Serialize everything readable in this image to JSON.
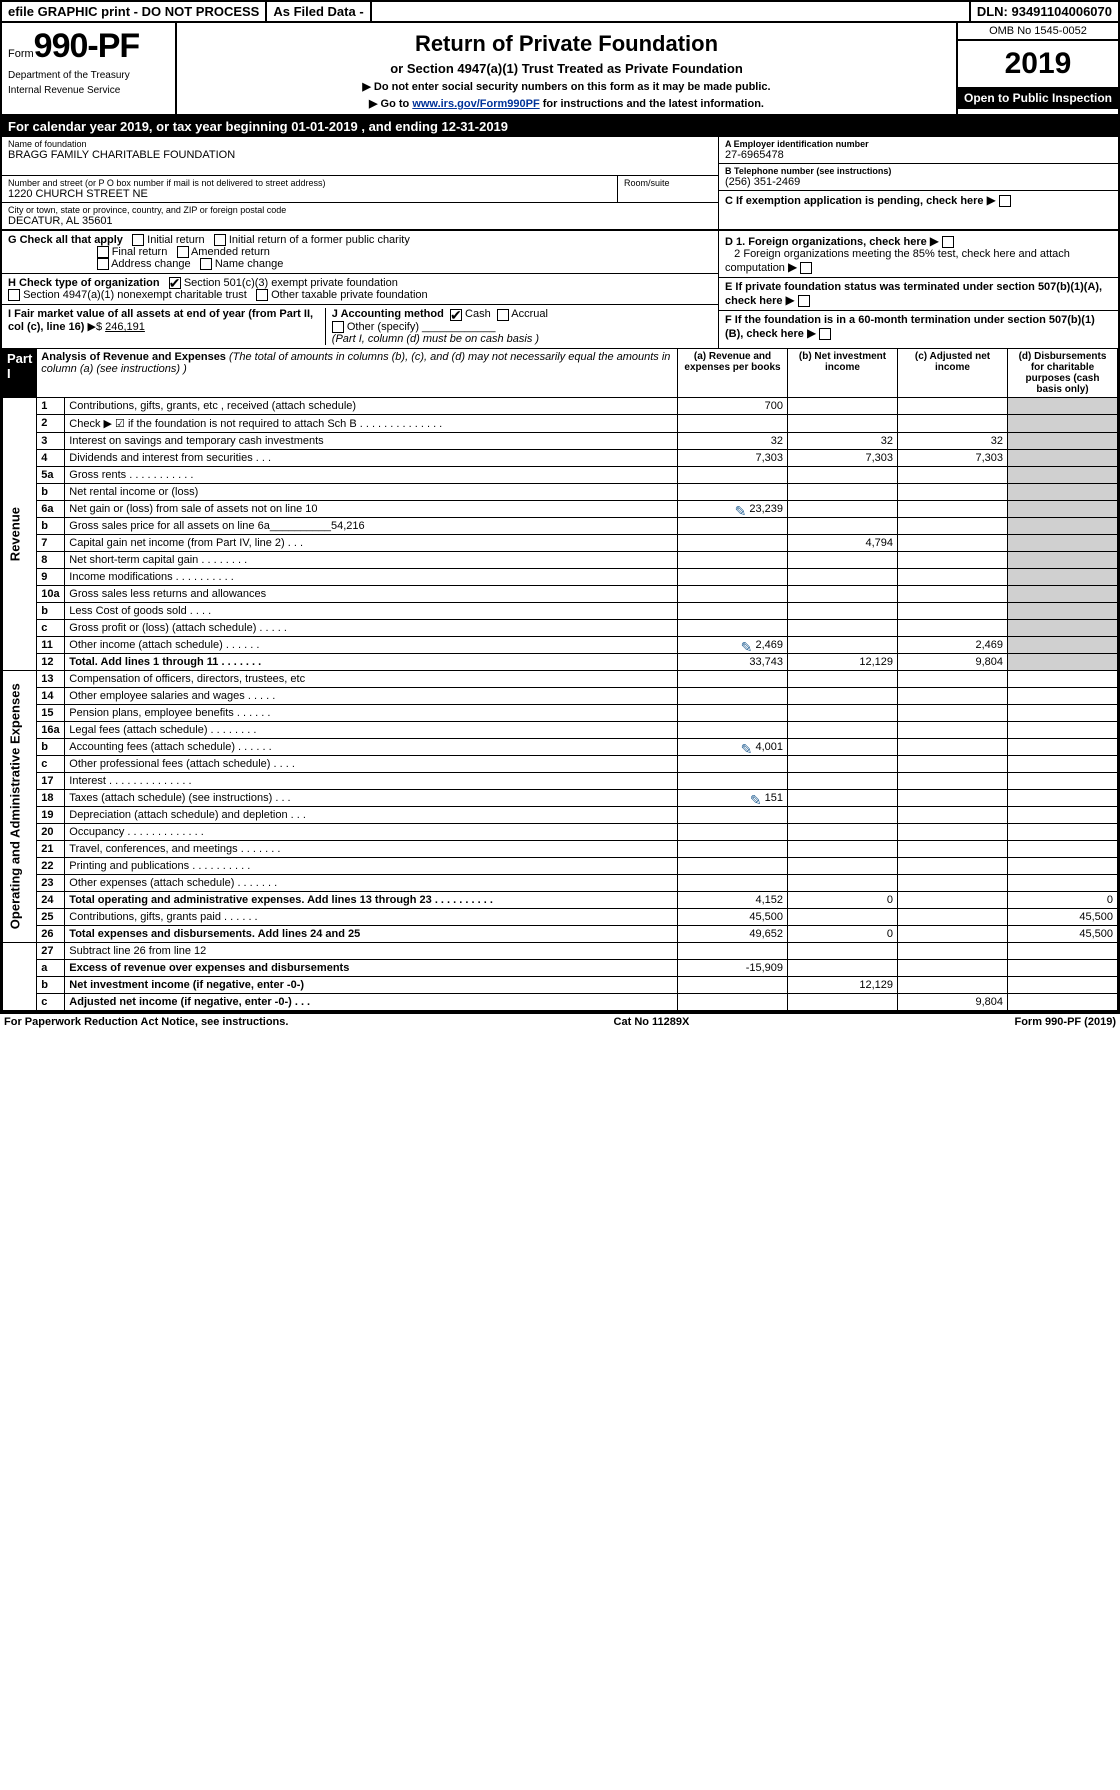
{
  "top": {
    "efile": "efile GRAPHIC print - DO NOT PROCESS",
    "asfiled": "As Filed Data -",
    "dln_lbl": "DLN:",
    "dln": "93491104006070"
  },
  "header": {
    "form_word": "Form",
    "form_no": "990-PF",
    "dept1": "Department of the Treasury",
    "dept2": "Internal Revenue Service",
    "title": "Return of Private Foundation",
    "subtitle": "or Section 4947(a)(1) Trust Treated as Private Foundation",
    "instr1": "▶ Do not enter social security numbers on this form as it may be made public.",
    "instr2_pre": "▶ Go to ",
    "instr2_link": "www.irs.gov/Form990PF",
    "instr2_post": " for instructions and the latest information.",
    "omb": "OMB No 1545-0052",
    "year": "2019",
    "open": "Open to Public Inspection"
  },
  "cal": {
    "text_pre": "For calendar year 2019, or tax year beginning ",
    "begin": "01-01-2019",
    "mid": " , and ending ",
    "end": "12-31-2019"
  },
  "name": {
    "lbl": "Name of foundation",
    "val": "BRAGG FAMILY CHARITABLE FOUNDATION"
  },
  "ein": {
    "lbl": "A Employer identification number",
    "val": "27-6965478"
  },
  "addr": {
    "lbl": "Number and street (or P O  box number if mail is not delivered to street address)",
    "val": "1220 CHURCH STREET NE",
    "room_lbl": "Room/suite"
  },
  "tel": {
    "lbl": "B Telephone number (see instructions)",
    "val": "(256) 351-2469"
  },
  "city": {
    "lbl": "City or town, state or province, country, and ZIP or foreign postal code",
    "val": "DECATUR, AL  35601"
  },
  "box_c": "C If exemption application is pending, check here",
  "box_g_lbl": "G Check all that apply",
  "box_g": {
    "initial": "Initial return",
    "initial_former": "Initial return of a former public charity",
    "final": "Final return",
    "amended": "Amended return",
    "addr": "Address change",
    "name": "Name change"
  },
  "box_d": {
    "d1": "D 1. Foreign organizations, check here",
    "d2": "2 Foreign organizations meeting the 85% test, check here and attach computation"
  },
  "box_h_lbl": "H Check type of organization",
  "box_h": {
    "h1": "Section 501(c)(3) exempt private foundation",
    "h2": "Section 4947(a)(1) nonexempt charitable trust",
    "h3": "Other taxable private foundation"
  },
  "box_e": "E  If private foundation status was terminated under section 507(b)(1)(A), check here",
  "box_i": {
    "lbl": "I Fair market value of all assets at end of year (from Part II, col  (c), line 16)",
    "arrow": "▶$",
    "val": "246,191"
  },
  "box_j": {
    "lbl": "J Accounting method",
    "cash": "Cash",
    "accrual": "Accrual",
    "other": "Other (specify)",
    "note": "(Part I, column (d) must be on cash basis )"
  },
  "box_f": "F  If the foundation is in a 60-month termination under section 507(b)(1)(B), check here",
  "part1": {
    "lbl": "Part I",
    "title": "Analysis of Revenue and Expenses",
    "note": "(The total of amounts in columns (b), (c), and (d) may not necessarily equal the amounts in column (a) (see instructions) )",
    "col_a": "(a)   Revenue and expenses per books",
    "col_b": "(b)  Net investment income",
    "col_c": "(c)  Adjusted net income",
    "col_d": "(d)  Disbursements for charitable purposes (cash basis only)"
  },
  "rot": {
    "revenue": "Revenue",
    "expenses": "Operating and Administrative Expenses"
  },
  "rows": [
    {
      "n": "1",
      "d": "Contributions, gifts, grants, etc , received (attach schedule)",
      "a": "700"
    },
    {
      "n": "2",
      "d": "Check ▶ ☑ if the foundation is not required to attach Sch  B     .   .   .   .   .   .   .   .   .   .   .   .   .   ."
    },
    {
      "n": "3",
      "d": "Interest on savings and temporary cash investments",
      "a": "32",
      "b": "32",
      "c": "32"
    },
    {
      "n": "4",
      "d": "Dividends and interest from securities   .   .   .",
      "a": "7,303",
      "b": "7,303",
      "c": "7,303"
    },
    {
      "n": "5a",
      "d": "Gross rents    .   .   .   .   .   .   .   .   .   .   ."
    },
    {
      "n": "b",
      "d": "Net rental income or (loss)  "
    },
    {
      "n": "6a",
      "d": "Net gain or (loss) from sale of assets not on line 10",
      "a": "23,239",
      "icon": true
    },
    {
      "n": "b",
      "d": "Gross sales price for all assets on line 6a__________54,216"
    },
    {
      "n": "7",
      "d": "Capital gain net income (from Part IV, line 2)   .   .   .",
      "b": "4,794"
    },
    {
      "n": "8",
      "d": "Net short-term capital gain   .   .   .   .   .   .   .   ."
    },
    {
      "n": "9",
      "d": "Income modifications  .   .   .   .   .   .   .   .   .   ."
    },
    {
      "n": "10a",
      "d": "Gross sales less returns and allowances  "
    },
    {
      "n": "b",
      "d": "Less  Cost of goods sold   .   .   .   .  "
    },
    {
      "n": "c",
      "d": "Gross profit or (loss) (attach schedule)    .   .   .   .   ."
    },
    {
      "n": "11",
      "d": "Other income (attach schedule)    .   .   .   .   .   .",
      "a": "2,469",
      "c": "2,469",
      "icon": true
    },
    {
      "n": "12",
      "d": "Total. Add lines 1 through 11   .   .   .   .   .   .   .",
      "a": "33,743",
      "b": "12,129",
      "c": "9,804",
      "bold": true
    }
  ],
  "rows2": [
    {
      "n": "13",
      "d": "Compensation of officers, directors, trustees, etc"
    },
    {
      "n": "14",
      "d": "Other employee salaries and wages    .   .   .   .   ."
    },
    {
      "n": "15",
      "d": "Pension plans, employee benefits   .   .   .   .   .   ."
    },
    {
      "n": "16a",
      "d": "Legal fees (attach schedule)  .   .   .   .   .   .   .   ."
    },
    {
      "n": "b",
      "d": "Accounting fees (attach schedule)  .   .   .   .   .   .",
      "a": "4,001",
      "icon": true
    },
    {
      "n": "c",
      "d": "Other professional fees (attach schedule)   .   .   .   ."
    },
    {
      "n": "17",
      "d": "Interest  .   .   .   .   .   .   .   .   .   .   .   .   .   ."
    },
    {
      "n": "18",
      "d": "Taxes (attach schedule) (see instructions)    .   .   .",
      "a": "151",
      "icon": true
    },
    {
      "n": "19",
      "d": "Depreciation (attach schedule) and depletion   .   .   ."
    },
    {
      "n": "20",
      "d": "Occupancy   .   .   .   .   .   .   .   .   .   .   .   .   ."
    },
    {
      "n": "21",
      "d": "Travel, conferences, and meetings  .   .   .   .   .   .   ."
    },
    {
      "n": "22",
      "d": "Printing and publications  .   .   .   .   .   .   .   .   .   ."
    },
    {
      "n": "23",
      "d": "Other expenses (attach schedule)  .   .   .   .   .   .   ."
    },
    {
      "n": "24",
      "d": "Total operating and administrative expenses. Add lines 13 through 23   .   .   .   .   .   .   .   .   .   .",
      "a": "4,152",
      "b": "0",
      "dd": "0",
      "bold": true
    },
    {
      "n": "25",
      "d": "Contributions, gifts, grants paid    .   .   .   .   .   .",
      "a": "45,500",
      "dd": "45,500"
    },
    {
      "n": "26",
      "d": "Total expenses and disbursements. Add lines 24 and 25",
      "a": "49,652",
      "b": "0",
      "dd": "45,500",
      "bold": true
    }
  ],
  "rows3": [
    {
      "n": "27",
      "d": "Subtract line 26 from line 12"
    },
    {
      "n": "a",
      "d": "Excess of revenue over expenses and disbursements",
      "a": "-15,909",
      "bold": true
    },
    {
      "n": "b",
      "d": "Net investment income (if negative, enter -0-)",
      "b": "12,129",
      "bold": true
    },
    {
      "n": "c",
      "d": "Adjusted net income (if negative, enter -0-)  .   .   .",
      "c": "9,804",
      "bold": true
    }
  ],
  "footer": {
    "left": "For Paperwork Reduction Act Notice, see instructions.",
    "mid": "Cat  No  11289X",
    "right_pre": "Form ",
    "right_form": "990-PF",
    "right_post": " (2019)"
  }
}
